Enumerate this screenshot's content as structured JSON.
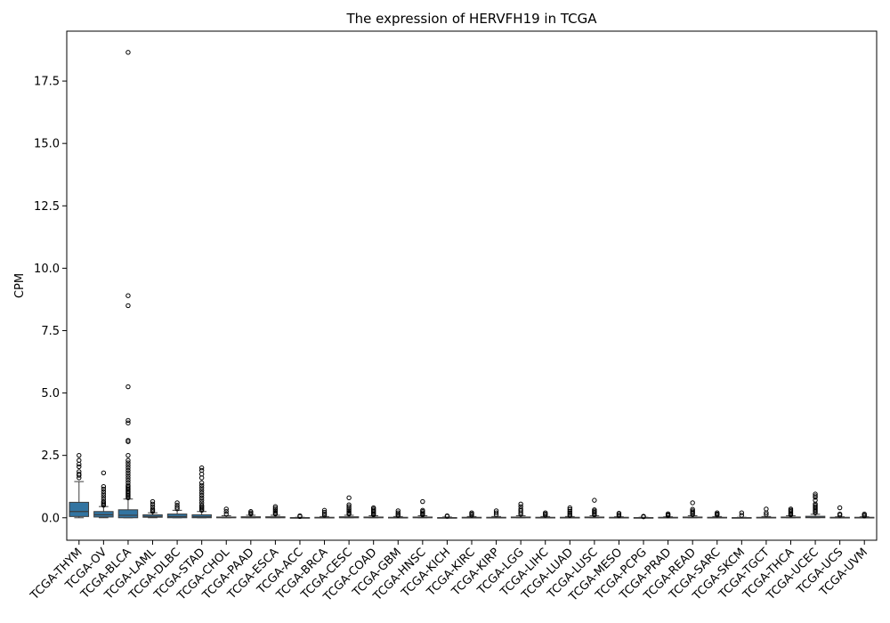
{
  "chart_data": {
    "type": "box",
    "title": "The expression of HERVFH19 in TCGA",
    "xlabel": "",
    "ylabel": "CPM",
    "ylim": [
      -0.9,
      19.5
    ],
    "yticks": [
      0.0,
      2.5,
      5.0,
      7.5,
      10.0,
      12.5,
      15.0,
      17.5
    ],
    "ytick_labels": [
      "0.0",
      "2.5",
      "5.0",
      "7.5",
      "10.0",
      "12.5",
      "15.0",
      "17.5"
    ],
    "grid": false,
    "legend": "none",
    "colors": {
      "box": "#3274a1",
      "edge": "#3d3d3d",
      "outlier": "#000000"
    },
    "categories": [
      "TCGA-THYM",
      "TCGA-OV",
      "TCGA-BLCA",
      "TCGA-LAML",
      "TCGA-DLBC",
      "TCGA-STAD",
      "TCGA-CHOL",
      "TCGA-PAAD",
      "TCGA-ESCA",
      "TCGA-ACC",
      "TCGA-BRCA",
      "TCGA-CESC",
      "TCGA-COAD",
      "TCGA-GBM",
      "TCGA-HNSC",
      "TCGA-KICH",
      "TCGA-KIRC",
      "TCGA-KIRP",
      "TCGA-LGG",
      "TCGA-LIHC",
      "TCGA-LUAD",
      "TCGA-LUSC",
      "TCGA-MESO",
      "TCGA-PCPG",
      "TCGA-PRAD",
      "TCGA-READ",
      "TCGA-SARC",
      "TCGA-SKCM",
      "TCGA-TGCT",
      "TCGA-THCA",
      "TCGA-UCEC",
      "TCGA-UCS",
      "TCGA-UVM"
    ],
    "boxes": [
      {
        "q1": 0.05,
        "median": 0.25,
        "q3": 0.62,
        "whislo": 0.0,
        "whishi": 1.45,
        "outliers": [
          2.5,
          2.3,
          2.15,
          2.05,
          1.85,
          1.75,
          1.7,
          1.6
        ]
      },
      {
        "q1": 0.03,
        "median": 0.12,
        "q3": 0.25,
        "whislo": 0.0,
        "whishi": 0.45,
        "outliers": [
          1.8,
          1.25,
          1.15,
          1.05,
          0.95,
          0.85,
          0.75,
          0.65,
          0.6,
          0.55,
          0.5
        ]
      },
      {
        "q1": 0.0,
        "median": 0.1,
        "q3": 0.32,
        "whislo": 0.0,
        "whishi": 0.75,
        "outliers": [
          18.65,
          8.9,
          8.5,
          5.25,
          3.9,
          3.8,
          3.1,
          3.05,
          2.5,
          2.3,
          2.2,
          2.1,
          2.0,
          1.9,
          1.8,
          1.7,
          1.6,
          1.5,
          1.4,
          1.3,
          1.25,
          1.2,
          1.15,
          1.1,
          1.05,
          1.0,
          0.95,
          0.9,
          0.85,
          0.8
        ]
      },
      {
        "q1": 0.02,
        "median": 0.05,
        "q3": 0.12,
        "whislo": 0.0,
        "whishi": 0.2,
        "outliers": [
          0.65,
          0.55,
          0.45,
          0.35,
          0.3,
          0.25
        ]
      },
      {
        "q1": 0.0,
        "median": 0.05,
        "q3": 0.15,
        "whislo": 0.0,
        "whishi": 0.3,
        "outliers": [
          0.6,
          0.5,
          0.42,
          0.36
        ]
      },
      {
        "q1": 0.0,
        "median": 0.04,
        "q3": 0.12,
        "whislo": 0.0,
        "whishi": 0.25,
        "outliers": [
          2.0,
          1.9,
          1.75,
          1.6,
          1.4,
          1.3,
          1.2,
          1.1,
          1.0,
          0.9,
          0.8,
          0.7,
          0.6,
          0.5,
          0.45,
          0.4,
          0.35,
          0.3
        ]
      },
      {
        "q1": 0.0,
        "median": 0.01,
        "q3": 0.03,
        "whislo": 0.0,
        "whishi": 0.08,
        "outliers": [
          0.35,
          0.25,
          0.15
        ]
      },
      {
        "q1": 0.0,
        "median": 0.01,
        "q3": 0.04,
        "whislo": 0.0,
        "whishi": 0.1,
        "outliers": [
          0.25,
          0.2,
          0.15
        ]
      },
      {
        "q1": 0.0,
        "median": 0.01,
        "q3": 0.04,
        "whislo": 0.0,
        "whishi": 0.1,
        "outliers": [
          0.45,
          0.38,
          0.32,
          0.26,
          0.2,
          0.15
        ]
      },
      {
        "q1": 0.0,
        "median": 0.0,
        "q3": 0.01,
        "whislo": 0.0,
        "whishi": 0.02,
        "outliers": [
          0.08,
          0.05
        ]
      },
      {
        "q1": 0.0,
        "median": 0.0,
        "q3": 0.02,
        "whislo": 0.0,
        "whishi": 0.05,
        "outliers": [
          0.3,
          0.22,
          0.16,
          0.1
        ]
      },
      {
        "q1": 0.0,
        "median": 0.01,
        "q3": 0.04,
        "whislo": 0.0,
        "whishi": 0.1,
        "outliers": [
          0.8,
          0.52,
          0.45,
          0.38,
          0.32,
          0.26,
          0.2,
          0.15
        ]
      },
      {
        "q1": 0.0,
        "median": 0.01,
        "q3": 0.03,
        "whislo": 0.0,
        "whishi": 0.08,
        "outliers": [
          0.4,
          0.35,
          0.3,
          0.25,
          0.2,
          0.15,
          0.12
        ]
      },
      {
        "q1": 0.0,
        "median": 0.0,
        "q3": 0.02,
        "whislo": 0.0,
        "whishi": 0.05,
        "outliers": [
          0.28,
          0.2,
          0.14,
          0.09
        ]
      },
      {
        "q1": 0.0,
        "median": 0.01,
        "q3": 0.03,
        "whislo": 0.0,
        "whishi": 0.08,
        "outliers": [
          0.65,
          0.3,
          0.25,
          0.2,
          0.15,
          0.12
        ]
      },
      {
        "q1": 0.0,
        "median": 0.0,
        "q3": 0.01,
        "whislo": 0.0,
        "whishi": 0.03,
        "outliers": [
          0.08,
          0.06
        ]
      },
      {
        "q1": 0.0,
        "median": 0.0,
        "q3": 0.02,
        "whislo": 0.0,
        "whishi": 0.05,
        "outliers": [
          0.2,
          0.15,
          0.1
        ]
      },
      {
        "q1": 0.0,
        "median": 0.0,
        "q3": 0.02,
        "whislo": 0.0,
        "whishi": 0.05,
        "outliers": [
          0.28,
          0.2,
          0.12
        ]
      },
      {
        "q1": 0.0,
        "median": 0.01,
        "q3": 0.03,
        "whislo": 0.0,
        "whishi": 0.08,
        "outliers": [
          0.55,
          0.45,
          0.35,
          0.28,
          0.2,
          0.14
        ]
      },
      {
        "q1": 0.0,
        "median": 0.0,
        "q3": 0.02,
        "whislo": 0.0,
        "whishi": 0.05,
        "outliers": [
          0.2,
          0.15,
          0.1
        ]
      },
      {
        "q1": 0.0,
        "median": 0.0,
        "q3": 0.02,
        "whislo": 0.0,
        "whishi": 0.05,
        "outliers": [
          0.4,
          0.33,
          0.26,
          0.2,
          0.14,
          0.09
        ]
      },
      {
        "q1": 0.0,
        "median": 0.01,
        "q3": 0.03,
        "whislo": 0.0,
        "whishi": 0.08,
        "outliers": [
          0.7,
          0.32,
          0.27,
          0.22,
          0.17,
          0.12
        ]
      },
      {
        "q1": 0.0,
        "median": 0.0,
        "q3": 0.02,
        "whislo": 0.0,
        "whishi": 0.04,
        "outliers": [
          0.18,
          0.13,
          0.08
        ]
      },
      {
        "q1": 0.0,
        "median": 0.0,
        "q3": 0.01,
        "whislo": 0.0,
        "whishi": 0.02,
        "outliers": [
          0.06,
          0.04
        ]
      },
      {
        "q1": 0.0,
        "median": 0.0,
        "q3": 0.02,
        "whislo": 0.0,
        "whishi": 0.04,
        "outliers": [
          0.16,
          0.12,
          0.08
        ]
      },
      {
        "q1": 0.0,
        "median": 0.01,
        "q3": 0.03,
        "whislo": 0.0,
        "whishi": 0.08,
        "outliers": [
          0.6,
          0.34,
          0.28,
          0.23,
          0.18,
          0.13
        ]
      },
      {
        "q1": 0.0,
        "median": 0.0,
        "q3": 0.02,
        "whislo": 0.0,
        "whishi": 0.05,
        "outliers": [
          0.2,
          0.15,
          0.11
        ]
      },
      {
        "q1": 0.0,
        "median": 0.0,
        "q3": 0.01,
        "whislo": 0.0,
        "whishi": 0.02,
        "outliers": [
          0.2,
          0.1
        ]
      },
      {
        "q1": 0.0,
        "median": 0.0,
        "q3": 0.02,
        "whislo": 0.0,
        "whishi": 0.05,
        "outliers": [
          0.35,
          0.2,
          0.13
        ]
      },
      {
        "q1": 0.0,
        "median": 0.01,
        "q3": 0.03,
        "whislo": 0.0,
        "whishi": 0.08,
        "outliers": [
          0.35,
          0.3,
          0.25,
          0.2,
          0.15,
          0.12
        ]
      },
      {
        "q1": 0.0,
        "median": 0.02,
        "q3": 0.06,
        "whislo": 0.0,
        "whishi": 0.14,
        "outliers": [
          0.95,
          0.88,
          0.82,
          0.7,
          0.55,
          0.5,
          0.45,
          0.4,
          0.35,
          0.3,
          0.25,
          0.2
        ]
      },
      {
        "q1": 0.0,
        "median": 0.0,
        "q3": 0.02,
        "whislo": 0.0,
        "whishi": 0.04,
        "outliers": [
          0.4,
          0.15,
          0.1
        ]
      },
      {
        "q1": 0.0,
        "median": 0.0,
        "q3": 0.02,
        "whislo": 0.0,
        "whishi": 0.04,
        "outliers": [
          0.15,
          0.1,
          0.07
        ]
      }
    ]
  }
}
